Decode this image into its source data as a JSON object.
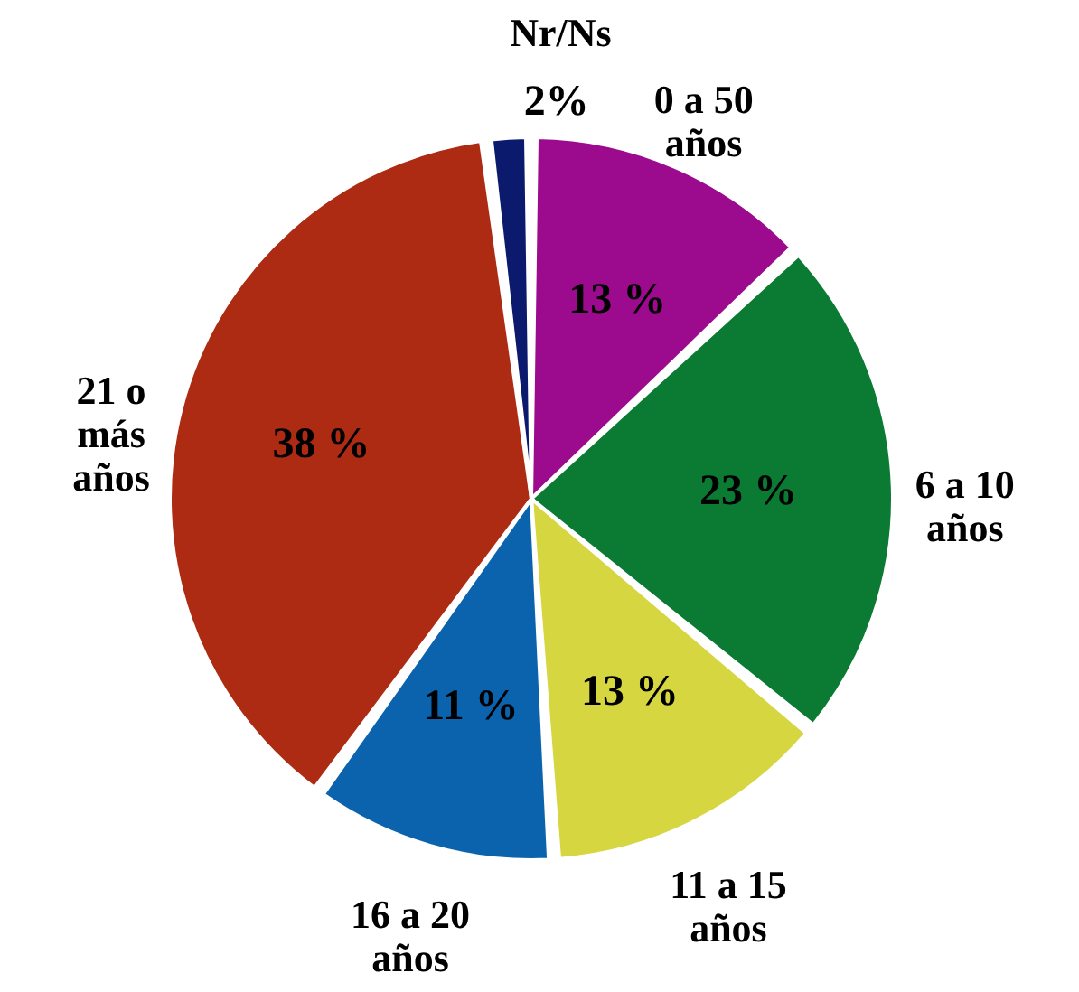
{
  "chart_data": {
    "type": "pie",
    "categories": [
      "0 a 50\naños",
      "6 a 10\naños",
      "11 a 15\naños",
      "16 a 20\naños",
      "21 o\nmás\naños",
      "Nr/Ns"
    ],
    "values": [
      13,
      23,
      13,
      11,
      38,
      2
    ],
    "colors": [
      "#9c0a8e",
      "#0b7a33",
      "#d6d640",
      "#0b63ae",
      "#ad2a13",
      "#0b1a6c"
    ],
    "value_labels": [
      "13 %",
      "23 %",
      "13 %",
      "11 %",
      "38 %",
      "2%"
    ]
  }
}
